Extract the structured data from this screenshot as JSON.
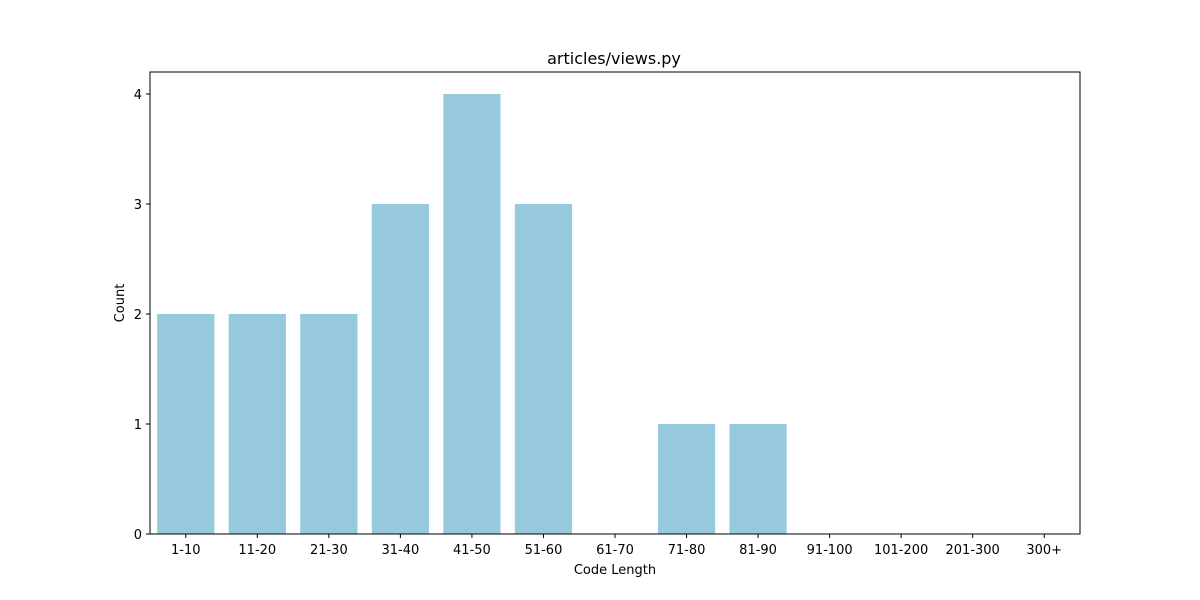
{
  "chart_data": {
    "type": "bar",
    "title": "articles/views.py",
    "xlabel": "Code Length",
    "ylabel": "Count",
    "categories": [
      "1-10",
      "11-20",
      "21-30",
      "31-40",
      "41-50",
      "51-60",
      "61-70",
      "71-80",
      "81-90",
      "91-100",
      "101-200",
      "201-300",
      "300+"
    ],
    "values": [
      2,
      2,
      2,
      3,
      4,
      3,
      0,
      1,
      1,
      0,
      0,
      0,
      0
    ],
    "yticks": [
      "0",
      "1",
      "2",
      "3",
      "4"
    ],
    "ylim": [
      0,
      4.2
    ],
    "bar_color": "#96c9de",
    "grid": false,
    "legend": "none"
  }
}
